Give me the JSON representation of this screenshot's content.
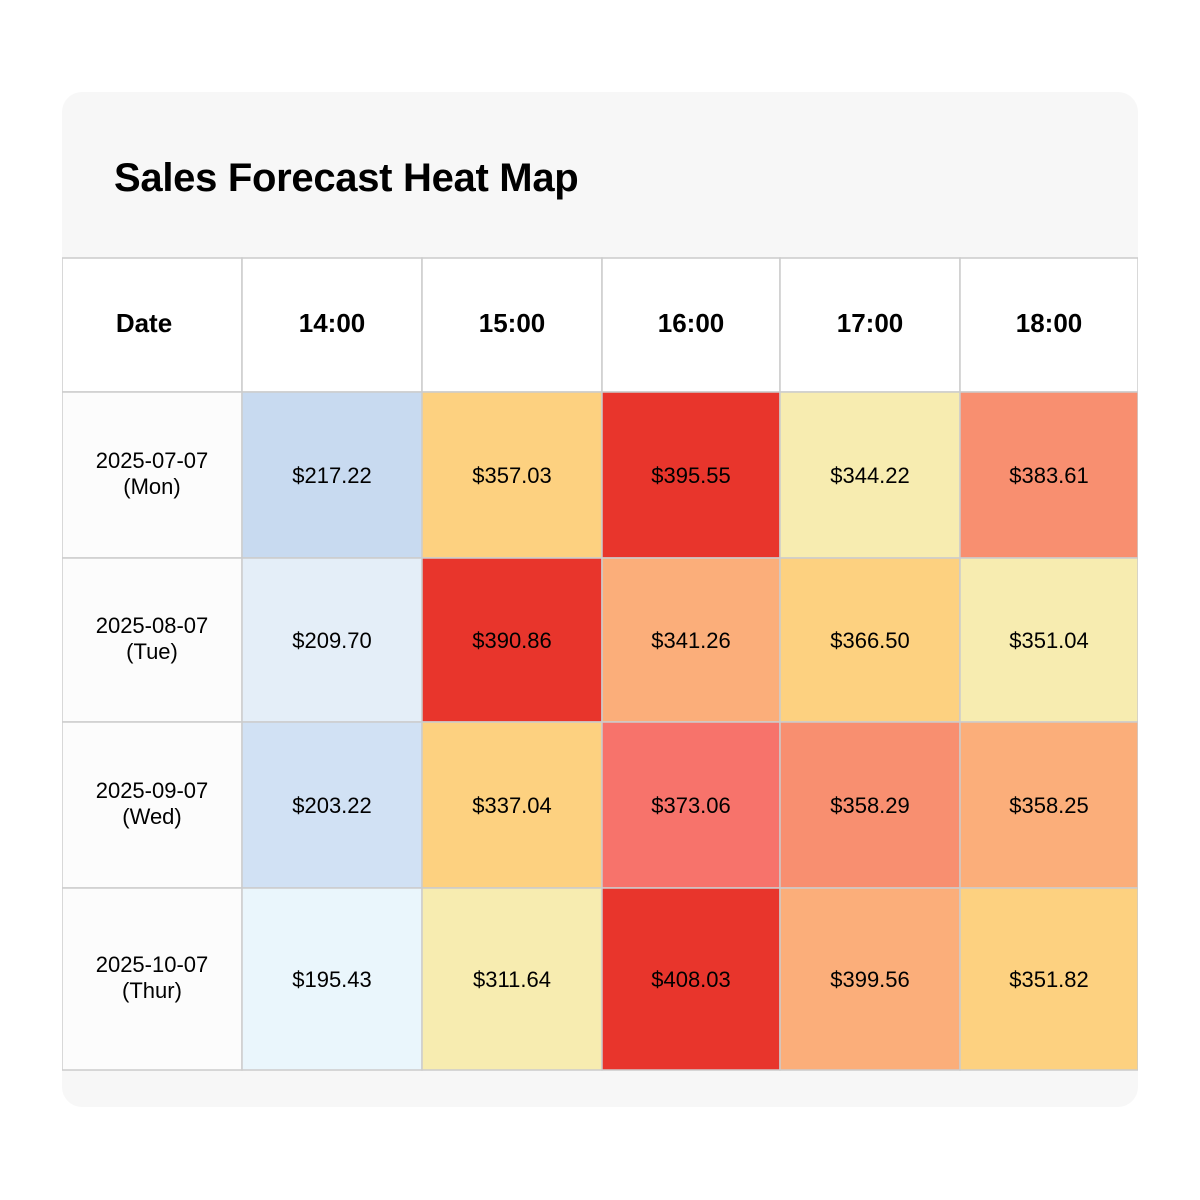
{
  "title": "Sales Forecast Heat Map",
  "chart_data": {
    "type": "heatmap",
    "title": "Sales Forecast Heat Map",
    "row_header": "Date",
    "columns": [
      "14:00",
      "15:00",
      "16:00",
      "17:00",
      "18:00"
    ],
    "rows": [
      {
        "date": "2025-07-07",
        "day": "(Mon)",
        "values": [
          "$217.22",
          "$357.03",
          "$395.55",
          "$344.22",
          "$383.61"
        ],
        "colors": [
          "#c8daf0",
          "#fdd180",
          "#e8352c",
          "#f7ecb0",
          "#f88f70"
        ]
      },
      {
        "date": "2025-08-07",
        "day": "(Tue)",
        "values": [
          "$209.70",
          "$390.86",
          "$341.26",
          "$366.50",
          "$351.04"
        ],
        "colors": [
          "#e4eef8",
          "#e8352c",
          "#fbae7a",
          "#fdd180",
          "#f7ecb0"
        ]
      },
      {
        "date": "2025-09-07",
        "day": "(Wed)",
        "values": [
          "$203.22",
          "$337.04",
          "$373.06",
          "$358.29",
          "$358.25"
        ],
        "colors": [
          "#d1e1f4",
          "#fdd180",
          "#f7736b",
          "#f88f70",
          "#fbae7a"
        ]
      },
      {
        "date": "2025-10-07",
        "day": "(Thur)",
        "values": [
          "$195.43",
          "$311.64",
          "$408.03",
          "$399.56",
          "$351.82"
        ],
        "colors": [
          "#eaf6fc",
          "#f7ecb0",
          "#e8352c",
          "#fbae7a",
          "#fdd180"
        ]
      }
    ],
    "header_background": "#ffffff",
    "date_column_background": "#fcfcfc",
    "grid_color": "#cccccc"
  }
}
